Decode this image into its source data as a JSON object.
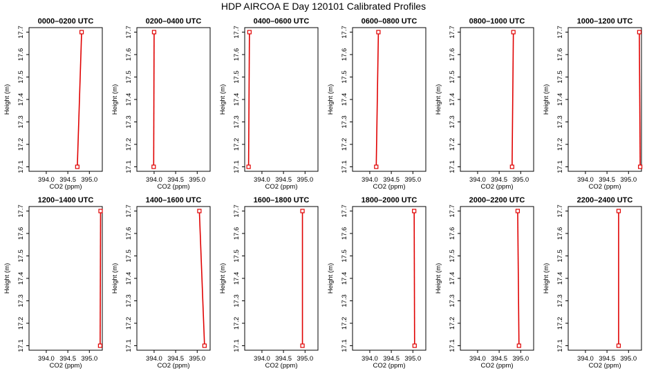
{
  "figure": {
    "title": "HDP AIRCOA E  Day 120101  Calibrated Profiles"
  },
  "colors": {
    "profile_line": "#e00000",
    "marker": "#e00000",
    "axis": "#000000"
  },
  "chart_data": [
    {
      "type": "line",
      "title": "0000–0200 UTC",
      "xlabel": "CO2 (ppm)",
      "ylabel": "Height (m)",
      "xlim": [
        393.6,
        395.3
      ],
      "ylim": [
        17.08,
        17.72
      ],
      "xticks": [
        394.0,
        394.5,
        395.0
      ],
      "xtick_labels": [
        "394.0",
        "394.5",
        "395.0"
      ],
      "yticks": [
        17.1,
        17.2,
        17.3,
        17.4,
        17.5,
        17.6,
        17.7
      ],
      "ytick_labels": [
        "17.1",
        "17.2",
        "17.3",
        "17.4",
        "17.5",
        "17.6",
        "17.7"
      ],
      "series": [
        {
          "x": [
            394.72,
            394.82
          ],
          "y": [
            17.1,
            17.7
          ]
        }
      ]
    },
    {
      "type": "line",
      "title": "0200–0400 UTC",
      "xlabel": "CO2 (ppm)",
      "ylabel": "Height (m)",
      "xlim": [
        393.6,
        395.3
      ],
      "ylim": [
        17.08,
        17.72
      ],
      "xticks": [
        394.0,
        394.5,
        395.0
      ],
      "xtick_labels": [
        "394.0",
        "394.5",
        "395.0"
      ],
      "yticks": [
        17.1,
        17.2,
        17.3,
        17.4,
        17.5,
        17.6,
        17.7
      ],
      "ytick_labels": [
        "17.1",
        "17.2",
        "17.3",
        "17.4",
        "17.5",
        "17.6",
        "17.7"
      ],
      "series": [
        {
          "x": [
            393.99,
            394.0
          ],
          "y": [
            17.1,
            17.7
          ]
        }
      ]
    },
    {
      "type": "line",
      "title": "0400–0600 UTC",
      "xlabel": "CO2 (ppm)",
      "ylabel": "Height (m)",
      "xlim": [
        393.6,
        395.3
      ],
      "ylim": [
        17.08,
        17.72
      ],
      "xticks": [
        394.0,
        394.5,
        395.0
      ],
      "xtick_labels": [
        "394.0",
        "394.5",
        "395.0"
      ],
      "yticks": [
        17.1,
        17.2,
        17.3,
        17.4,
        17.5,
        17.6,
        17.7
      ],
      "ytick_labels": [
        "17.1",
        "17.2",
        "17.3",
        "17.4",
        "17.5",
        "17.6",
        "17.7"
      ],
      "series": [
        {
          "x": [
            393.69,
            393.71
          ],
          "y": [
            17.1,
            17.7
          ]
        }
      ]
    },
    {
      "type": "line",
      "title": "0600–0800 UTC",
      "xlabel": "CO2 (ppm)",
      "ylabel": "Height (m)",
      "xlim": [
        393.6,
        395.3
      ],
      "ylim": [
        17.08,
        17.72
      ],
      "xticks": [
        394.0,
        394.5,
        395.0
      ],
      "xtick_labels": [
        "394.0",
        "394.5",
        "395.0"
      ],
      "yticks": [
        17.1,
        17.2,
        17.3,
        17.4,
        17.5,
        17.6,
        17.7
      ],
      "ytick_labels": [
        "17.1",
        "17.2",
        "17.3",
        "17.4",
        "17.5",
        "17.6",
        "17.7"
      ],
      "series": [
        {
          "x": [
            394.15,
            394.2
          ],
          "y": [
            17.1,
            17.7
          ]
        }
      ]
    },
    {
      "type": "line",
      "title": "0800–1000 UTC",
      "xlabel": "CO2 (ppm)",
      "ylabel": "Height (m)",
      "xlim": [
        393.6,
        395.3
      ],
      "ylim": [
        17.08,
        17.72
      ],
      "xticks": [
        394.0,
        394.5,
        395.0
      ],
      "xtick_labels": [
        "394.0",
        "394.5",
        "395.0"
      ],
      "yticks": [
        17.1,
        17.2,
        17.3,
        17.4,
        17.5,
        17.6,
        17.7
      ],
      "ytick_labels": [
        "17.1",
        "17.2",
        "17.3",
        "17.4",
        "17.5",
        "17.6",
        "17.7"
      ],
      "series": [
        {
          "x": [
            394.8,
            394.83
          ],
          "y": [
            17.1,
            17.7
          ]
        }
      ]
    },
    {
      "type": "line",
      "title": "1000–1200 UTC",
      "xlabel": "CO2 (ppm)",
      "ylabel": "Height (m)",
      "xlim": [
        393.6,
        395.3
      ],
      "ylim": [
        17.08,
        17.72
      ],
      "xticks": [
        394.0,
        394.5,
        395.0
      ],
      "xtick_labels": [
        "394.0",
        "394.5",
        "395.0"
      ],
      "yticks": [
        17.1,
        17.2,
        17.3,
        17.4,
        17.5,
        17.6,
        17.7
      ],
      "ytick_labels": [
        "17.1",
        "17.2",
        "17.3",
        "17.4",
        "17.5",
        "17.6",
        "17.7"
      ],
      "series": [
        {
          "x": [
            395.27,
            395.25
          ],
          "y": [
            17.1,
            17.7
          ]
        }
      ]
    },
    {
      "type": "line",
      "title": "1200–1400 UTC",
      "xlabel": "CO2 (ppm)",
      "ylabel": "Height (m)",
      "xlim": [
        393.6,
        395.3
      ],
      "ylim": [
        17.08,
        17.72
      ],
      "xticks": [
        394.0,
        394.5,
        395.0
      ],
      "xtick_labels": [
        "394.0",
        "394.5",
        "395.0"
      ],
      "yticks": [
        17.1,
        17.2,
        17.3,
        17.4,
        17.5,
        17.6,
        17.7
      ],
      "ytick_labels": [
        "17.1",
        "17.2",
        "17.3",
        "17.4",
        "17.5",
        "17.6",
        "17.7"
      ],
      "series": [
        {
          "x": [
            395.25,
            395.26
          ],
          "y": [
            17.1,
            17.7
          ]
        }
      ]
    },
    {
      "type": "line",
      "title": "1400–1600 UTC",
      "xlabel": "CO2 (ppm)",
      "ylabel": "Height (m)",
      "xlim": [
        393.6,
        395.3
      ],
      "ylim": [
        17.08,
        17.72
      ],
      "xticks": [
        394.0,
        394.5,
        395.0
      ],
      "xtick_labels": [
        "394.0",
        "394.5",
        "395.0"
      ],
      "yticks": [
        17.1,
        17.2,
        17.3,
        17.4,
        17.5,
        17.6,
        17.7
      ],
      "ytick_labels": [
        "17.1",
        "17.2",
        "17.3",
        "17.4",
        "17.5",
        "17.6",
        "17.7"
      ],
      "series": [
        {
          "x": [
            395.17,
            395.05
          ],
          "y": [
            17.1,
            17.7
          ]
        }
      ]
    },
    {
      "type": "line",
      "title": "1600–1800 UTC",
      "xlabel": "CO2 (ppm)",
      "ylabel": "Height (m)",
      "xlim": [
        393.6,
        395.3
      ],
      "ylim": [
        17.08,
        17.72
      ],
      "xticks": [
        394.0,
        394.5,
        395.0
      ],
      "xtick_labels": [
        "394.0",
        "394.5",
        "395.0"
      ],
      "yticks": [
        17.1,
        17.2,
        17.3,
        17.4,
        17.5,
        17.6,
        17.7
      ],
      "ytick_labels": [
        "17.1",
        "17.2",
        "17.3",
        "17.4",
        "17.5",
        "17.6",
        "17.7"
      ],
      "series": [
        {
          "x": [
            394.94,
            394.94
          ],
          "y": [
            17.1,
            17.7
          ]
        }
      ]
    },
    {
      "type": "line",
      "title": "1800–2000 UTC",
      "xlabel": "CO2 (ppm)",
      "ylabel": "Height (m)",
      "xlim": [
        393.6,
        395.3
      ],
      "ylim": [
        17.08,
        17.72
      ],
      "xticks": [
        394.0,
        394.5,
        395.0
      ],
      "xtick_labels": [
        "394.0",
        "394.5",
        "395.0"
      ],
      "yticks": [
        17.1,
        17.2,
        17.3,
        17.4,
        17.5,
        17.6,
        17.7
      ],
      "ytick_labels": [
        "17.1",
        "17.2",
        "17.3",
        "17.4",
        "17.5",
        "17.6",
        "17.7"
      ],
      "series": [
        {
          "x": [
            395.04,
            395.03
          ],
          "y": [
            17.1,
            17.7
          ]
        }
      ]
    },
    {
      "type": "line",
      "title": "2000–2200 UTC",
      "xlabel": "CO2 (ppm)",
      "ylabel": "Height (m)",
      "xlim": [
        393.6,
        395.3
      ],
      "ylim": [
        17.08,
        17.72
      ],
      "xticks": [
        394.0,
        394.5,
        395.0
      ],
      "xtick_labels": [
        "394.0",
        "394.5",
        "395.0"
      ],
      "yticks": [
        17.1,
        17.2,
        17.3,
        17.4,
        17.5,
        17.6,
        17.7
      ],
      "ytick_labels": [
        "17.1",
        "17.2",
        "17.3",
        "17.4",
        "17.5",
        "17.6",
        "17.7"
      ],
      "series": [
        {
          "x": [
            394.96,
            394.93
          ],
          "y": [
            17.1,
            17.7
          ]
        }
      ]
    },
    {
      "type": "line",
      "title": "2200–2400 UTC",
      "xlabel": "CO2 (ppm)",
      "ylabel": "Height (m)",
      "xlim": [
        393.6,
        395.3
      ],
      "ylim": [
        17.08,
        17.72
      ],
      "xticks": [
        394.0,
        394.5,
        395.0
      ],
      "xtick_labels": [
        "394.0",
        "394.5",
        "395.0"
      ],
      "yticks": [
        17.1,
        17.2,
        17.3,
        17.4,
        17.5,
        17.6,
        17.7
      ],
      "ytick_labels": [
        "17.1",
        "17.2",
        "17.3",
        "17.4",
        "17.5",
        "17.6",
        "17.7"
      ],
      "series": [
        {
          "x": [
            394.77,
            394.77
          ],
          "y": [
            17.1,
            17.7
          ]
        }
      ]
    }
  ]
}
